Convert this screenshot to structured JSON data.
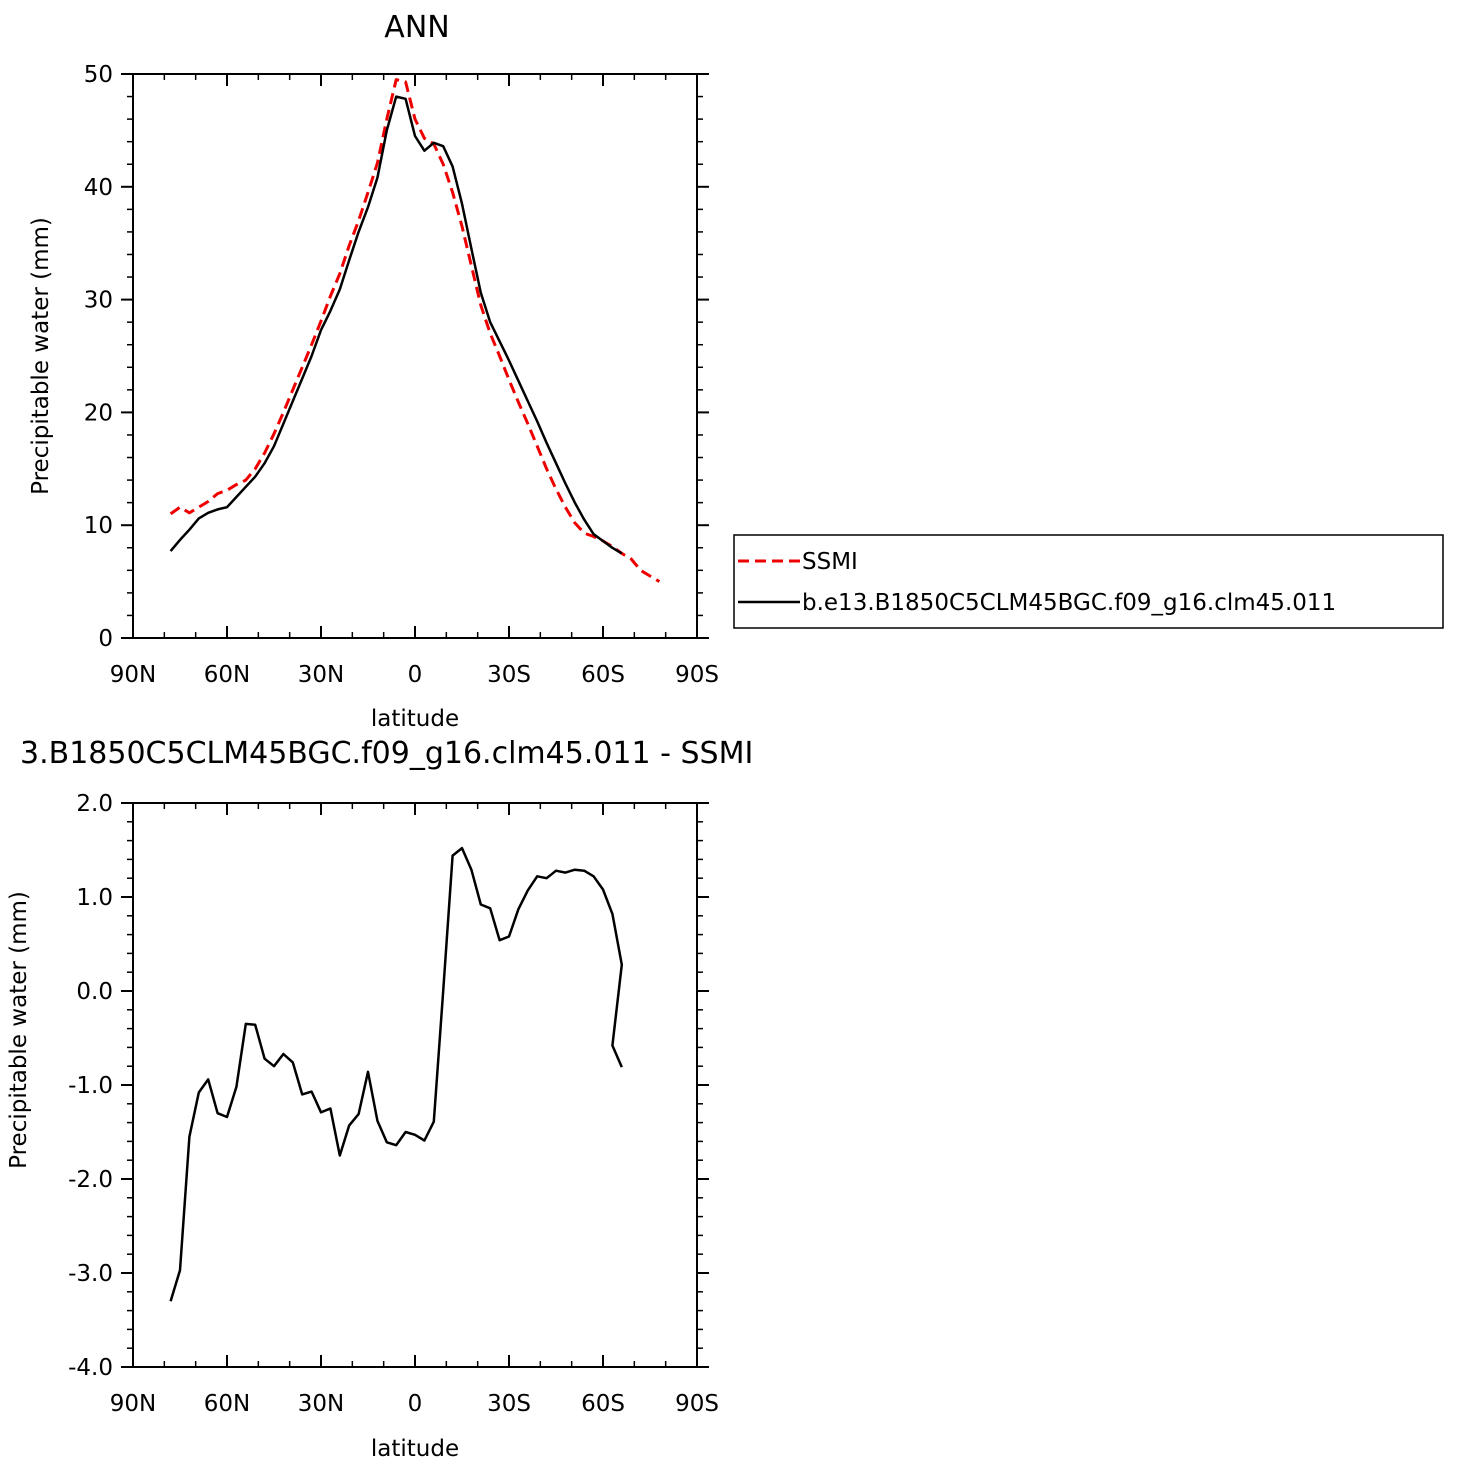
{
  "chart_data": [
    {
      "type": "line",
      "title": "ANN",
      "xlabel": "latitude",
      "ylabel": "Precipitable water (mm)",
      "xlim": [
        90,
        -90
      ],
      "ylim": [
        0,
        50
      ],
      "xticks": [
        90,
        60,
        30,
        0,
        -30,
        -60,
        -90
      ],
      "xtick_labels": [
        "90N",
        "60N",
        "30N",
        "0",
        "30S",
        "60S",
        "90S"
      ],
      "yticks": [
        0,
        10,
        20,
        30,
        40,
        50
      ],
      "ytick_labels": [
        "0",
        "10",
        "20",
        "30",
        "40",
        "50"
      ],
      "legend_position": "right",
      "series": [
        {
          "name": "SSMI",
          "color": "#ee0000",
          "dash": "dashed",
          "x": [
            78,
            75,
            72,
            69,
            66,
            63,
            60,
            57,
            54,
            51,
            48,
            45,
            42,
            39,
            36,
            33,
            30,
            27,
            24,
            21,
            18,
            15,
            12,
            9,
            6,
            3,
            0,
            -3,
            -6,
            -9,
            -12,
            -15,
            -18,
            -21,
            -24,
            -27,
            -30,
            -33,
            -36,
            -39,
            -42,
            -45,
            -48,
            -51,
            -54,
            -57,
            -60,
            -63,
            -66,
            -69,
            -72,
            -75,
            -78
          ],
          "y": [
            11.0,
            11.6,
            11.1,
            11.6,
            12.1,
            12.8,
            13.1,
            13.6,
            14.0,
            15.0,
            16.4,
            18.1,
            20.0,
            22.0,
            24.0,
            26.0,
            28.1,
            30.3,
            32.3,
            34.8,
            37.0,
            39.5,
            42.1,
            46.0,
            49.5,
            49.3,
            46.0,
            44.3,
            43.8,
            42.0,
            39.5,
            36.5,
            33.0,
            29.5,
            27.0,
            25.0,
            22.9,
            20.9,
            19.0,
            17.0,
            15.0,
            13.2,
            11.6,
            10.2,
            9.3,
            9.0,
            8.6,
            8.1,
            7.5,
            7.0,
            6.0,
            5.5,
            5.0
          ]
        },
        {
          "name": "b.e13.B1850C5CLM45BGC.f09_g16.clm45.011",
          "color": "#000000",
          "dash": "solid",
          "x": [
            78,
            75,
            72,
            69,
            66,
            63,
            60,
            57,
            54,
            51,
            48,
            45,
            42,
            39,
            36,
            33,
            30,
            27,
            24,
            21,
            18,
            15,
            12,
            9,
            6,
            3,
            0,
            -3,
            -6,
            -9,
            -12,
            -15,
            -18,
            -21,
            -24,
            -27,
            -30,
            -33,
            -36,
            -39,
            -42,
            -45,
            -48,
            -51,
            -54,
            -57,
            -60,
            -63,
            -66
          ],
          "y": [
            7.7,
            8.7,
            9.6,
            10.6,
            11.1,
            11.4,
            11.6,
            12.5,
            13.4,
            14.3,
            15.5,
            17.0,
            19.0,
            21.0,
            23.0,
            25.0,
            27.3,
            29.0,
            30.9,
            33.5,
            36.0,
            38.2,
            40.8,
            45.0,
            48.0,
            47.8,
            44.5,
            43.2,
            43.9,
            43.6,
            41.8,
            38.5,
            34.5,
            30.6,
            28.0,
            26.3,
            24.6,
            22.8,
            21.0,
            19.2,
            17.3,
            15.5,
            13.7,
            12.0,
            10.5,
            9.2,
            8.6,
            8.0,
            7.5
          ]
        }
      ]
    },
    {
      "type": "line",
      "title": "3.B1850C5CLM45BGC.f09_g16.clm45.011  -  SSMI",
      "xlabel": "latitude",
      "ylabel": "Precipitable water (mm)",
      "xlim": [
        90,
        -90
      ],
      "ylim": [
        -4.0,
        2.0
      ],
      "xticks": [
        90,
        60,
        30,
        0,
        -30,
        -60,
        -90
      ],
      "xtick_labels": [
        "90N",
        "60N",
        "30N",
        "0",
        "30S",
        "60S",
        "90S"
      ],
      "yticks": [
        -4.0,
        -3.0,
        -2.0,
        -1.0,
        0.0,
        1.0,
        2.0
      ],
      "ytick_labels": [
        "-4.0",
        "-3.0",
        "-2.0",
        "-1.0",
        "0.0",
        "1.0",
        "2.0"
      ],
      "series": [
        {
          "color": "#000000",
          "dash": "solid",
          "x": [
            78,
            75,
            72,
            69,
            66,
            63,
            60,
            57,
            54,
            51,
            48,
            45,
            42,
            39,
            36,
            33,
            30,
            27,
            24,
            21,
            18,
            15,
            12,
            9,
            6,
            3,
            0,
            -3,
            -6,
            -9,
            -12,
            -15,
            -18,
            -21,
            -24,
            -27,
            -30,
            -33,
            -36,
            -39,
            -42,
            -45,
            -48,
            -51,
            -54,
            -57,
            -60,
            -63,
            -66
          ],
          "y": [
            -3.3,
            -2.97,
            -1.55,
            -1.08,
            -0.94,
            -1.3,
            -1.34,
            -1.02,
            -0.35,
            -0.36,
            -0.72,
            -0.8,
            -0.67,
            -0.76,
            -1.1,
            -1.07,
            -1.29,
            -1.25,
            -1.75,
            -1.43,
            -1.31,
            -0.86,
            -1.38,
            -1.61,
            -1.64,
            -1.5,
            -1.53,
            -1.59,
            -1.39,
            0.0,
            1.44,
            1.52,
            1.29,
            0.92,
            0.88,
            0.54,
            0.58,
            0.87,
            1.07,
            1.22,
            1.2,
            1.28,
            1.26,
            1.29,
            1.28,
            1.22,
            1.08,
            0.82,
            0.28
          ]
        }
      ]
    }
  ],
  "tail": {
    "x": [
      -63,
      -66
    ],
    "y": [
      -0.58,
      -0.81
    ]
  }
}
